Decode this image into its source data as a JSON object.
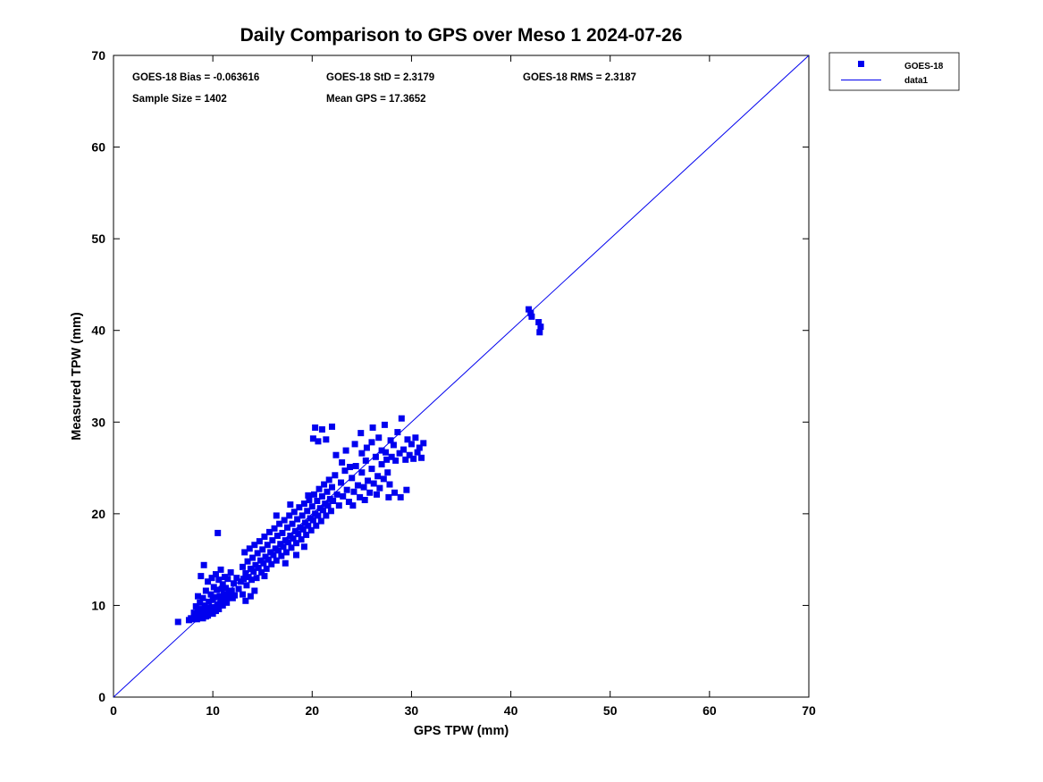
{
  "title": "Daily Comparison to GPS over Meso 1 2024-07-26",
  "annotations": {
    "bias": "GOES-18 Bias = -0.063616",
    "std": "GOES-18 StD = 2.3179",
    "rms": "GOES-18 RMS = 2.3187",
    "sample_size": "Sample Size = 1402",
    "mean_gps": "Mean GPS = 17.3652"
  },
  "legend": {
    "entries": [
      {
        "label": "GOES-18",
        "type": "marker"
      },
      {
        "label": "data1",
        "type": "line"
      }
    ]
  },
  "chart_data": {
    "type": "scatter",
    "title": "Daily Comparison to GPS over Meso 1 2024-07-26",
    "xlabel": "GPS TPW (mm)",
    "ylabel": "Measured TPW (mm)",
    "xlim": [
      0,
      70
    ],
    "ylim": [
      0,
      70
    ],
    "x_ticks": [
      0,
      10,
      20,
      30,
      40,
      50,
      60,
      70
    ],
    "y_ticks": [
      0,
      10,
      20,
      30,
      40,
      50,
      60,
      70
    ],
    "grid": false,
    "legend_position": "outside-top-right",
    "marker_color": "#0000ee",
    "line_color": "#0000ee",
    "marker_size": 7,
    "identity_line": {
      "x": [
        0,
        70
      ],
      "y": [
        0,
        70
      ],
      "name": "data1"
    },
    "stats": {
      "bias": -0.063616,
      "std": 2.3179,
      "rms": 2.3187,
      "sample_size": 1402,
      "mean_gps": 17.3652
    },
    "series": [
      {
        "name": "GOES-18",
        "points": [
          [
            6.5,
            8.2
          ],
          [
            7.6,
            8.4
          ],
          [
            7.8,
            8.6
          ],
          [
            8.0,
            8.5
          ],
          [
            8.1,
            9.2
          ],
          [
            8.2,
            8.8
          ],
          [
            8.3,
            9.9
          ],
          [
            8.4,
            8.5
          ],
          [
            8.5,
            9.4
          ],
          [
            8.5,
            11.0
          ],
          [
            8.6,
            8.7
          ],
          [
            8.7,
            10.3
          ],
          [
            8.8,
            9.0
          ],
          [
            8.8,
            13.2
          ],
          [
            8.9,
            9.6
          ],
          [
            9.0,
            8.6
          ],
          [
            9.0,
            10.8
          ],
          [
            9.1,
            9.3
          ],
          [
            9.1,
            14.4
          ],
          [
            9.2,
            10.0
          ],
          [
            9.3,
            8.8
          ],
          [
            9.3,
            11.6
          ],
          [
            9.4,
            9.7
          ],
          [
            9.5,
            8.9
          ],
          [
            9.5,
            12.6
          ],
          [
            9.6,
            10.4
          ],
          [
            9.7,
            9.2
          ],
          [
            9.8,
            11.2
          ],
          [
            9.9,
            9.8
          ],
          [
            9.9,
            13.0
          ],
          [
            10.0,
            9.1
          ],
          [
            10.0,
            10.6
          ],
          [
            10.1,
            9.8
          ],
          [
            10.1,
            12.0
          ],
          [
            10.2,
            10.9
          ],
          [
            10.3,
            9.4
          ],
          [
            10.3,
            13.4
          ],
          [
            10.4,
            11.7
          ],
          [
            10.5,
            10.1
          ],
          [
            10.5,
            17.9
          ],
          [
            10.6,
            9.6
          ],
          [
            10.6,
            12.8
          ],
          [
            10.7,
            11.0
          ],
          [
            10.8,
            10.4
          ],
          [
            10.8,
            13.9
          ],
          [
            10.9,
            11.8
          ],
          [
            11.0,
            10.0
          ],
          [
            11.0,
            12.3
          ],
          [
            11.1,
            11.2
          ],
          [
            11.2,
            10.7
          ],
          [
            11.2,
            13.1
          ],
          [
            11.3,
            11.9
          ],
          [
            11.4,
            10.3
          ],
          [
            11.5,
            12.9
          ],
          [
            11.6,
            11.3
          ],
          [
            11.7,
            10.9
          ],
          [
            11.8,
            13.6
          ],
          [
            11.9,
            11.6
          ],
          [
            12.0,
            10.8
          ],
          [
            12.1,
            12.4
          ],
          [
            12.2,
            11.1
          ],
          [
            12.4,
            13.0
          ],
          [
            12.6,
            11.8
          ],
          [
            12.8,
            12.6
          ],
          [
            13.0,
            11.2
          ],
          [
            13.0,
            14.2
          ],
          [
            13.1,
            12.9
          ],
          [
            13.2,
            15.8
          ],
          [
            13.3,
            13.5
          ],
          [
            13.4,
            12.2
          ],
          [
            13.5,
            14.8
          ],
          [
            13.6,
            13.1
          ],
          [
            13.7,
            16.2
          ],
          [
            13.8,
            14.0
          ],
          [
            13.9,
            12.8
          ],
          [
            14.0,
            15.2
          ],
          [
            14.1,
            13.7
          ],
          [
            14.2,
            16.6
          ],
          [
            14.3,
            14.4
          ],
          [
            14.4,
            13.0
          ],
          [
            14.5,
            15.7
          ],
          [
            14.6,
            14.1
          ],
          [
            14.7,
            17.0
          ],
          [
            14.8,
            14.9
          ],
          [
            14.9,
            13.6
          ],
          [
            15.0,
            16.1
          ],
          [
            15.1,
            14.6
          ],
          [
            15.2,
            17.5
          ],
          [
            15.3,
            15.3
          ],
          [
            15.4,
            14.0
          ],
          [
            15.5,
            16.6
          ],
          [
            15.6,
            15.0
          ],
          [
            15.7,
            18.0
          ],
          [
            15.8,
            15.8
          ],
          [
            15.9,
            14.5
          ],
          [
            16.0,
            17.1
          ],
          [
            16.1,
            15.5
          ],
          [
            16.2,
            18.4
          ],
          [
            16.3,
            16.2
          ],
          [
            16.4,
            14.9
          ],
          [
            16.5,
            17.6
          ],
          [
            16.6,
            16.0
          ],
          [
            16.7,
            18.9
          ],
          [
            16.8,
            16.7
          ],
          [
            16.9,
            15.4
          ],
          [
            13.3,
            10.5
          ],
          [
            13.8,
            11.0
          ],
          [
            14.2,
            11.6
          ],
          [
            15.2,
            13.2
          ],
          [
            16.4,
            19.8
          ],
          [
            17.0,
            17.9
          ],
          [
            17.1,
            16.4
          ],
          [
            17.2,
            19.3
          ],
          [
            17.3,
            17.1
          ],
          [
            17.4,
            15.8
          ],
          [
            17.5,
            18.5
          ],
          [
            17.6,
            16.9
          ],
          [
            17.7,
            19.8
          ],
          [
            17.8,
            17.6
          ],
          [
            17.9,
            16.3
          ],
          [
            18.0,
            18.9
          ],
          [
            18.1,
            17.3
          ],
          [
            18.2,
            20.2
          ],
          [
            18.3,
            18.1
          ],
          [
            18.4,
            16.8
          ],
          [
            18.5,
            19.4
          ],
          [
            18.6,
            17.8
          ],
          [
            18.7,
            20.7
          ],
          [
            18.8,
            18.5
          ],
          [
            18.9,
            17.2
          ],
          [
            19.0,
            19.8
          ],
          [
            19.1,
            18.3
          ],
          [
            19.2,
            21.1
          ],
          [
            19.3,
            19.0
          ],
          [
            19.4,
            17.7
          ],
          [
            19.5,
            20.3
          ],
          [
            19.6,
            18.7
          ],
          [
            19.7,
            21.5
          ],
          [
            19.8,
            19.5
          ],
          [
            19.9,
            18.2
          ],
          [
            17.3,
            14.6
          ],
          [
            18.4,
            15.5
          ],
          [
            19.2,
            16.4
          ],
          [
            17.8,
            21.0
          ],
          [
            19.6,
            22.0
          ],
          [
            20.0,
            20.8
          ],
          [
            20.1,
            19.3
          ],
          [
            20.2,
            22.1
          ],
          [
            20.3,
            20.0
          ],
          [
            20.4,
            18.7
          ],
          [
            20.5,
            21.4
          ],
          [
            20.6,
            19.8
          ],
          [
            20.7,
            22.7
          ],
          [
            20.8,
            20.6
          ],
          [
            20.9,
            19.2
          ],
          [
            21.0,
            21.9
          ],
          [
            21.1,
            20.4
          ],
          [
            21.2,
            23.2
          ],
          [
            21.3,
            21.1
          ],
          [
            21.4,
            19.8
          ],
          [
            21.5,
            22.4
          ],
          [
            21.6,
            20.9
          ],
          [
            21.7,
            23.7
          ],
          [
            21.8,
            21.6
          ],
          [
            21.9,
            20.3
          ],
          [
            22.0,
            22.9
          ],
          [
            22.1,
            21.4
          ],
          [
            22.3,
            24.2
          ],
          [
            22.5,
            22.1
          ],
          [
            22.7,
            20.9
          ],
          [
            22.9,
            23.4
          ],
          [
            23.1,
            21.9
          ],
          [
            23.3,
            24.7
          ],
          [
            23.5,
            22.6
          ],
          [
            23.7,
            21.3
          ],
          [
            20.1,
            28.2
          ],
          [
            20.3,
            29.4
          ],
          [
            20.6,
            27.9
          ],
          [
            21.0,
            29.2
          ],
          [
            21.4,
            28.1
          ],
          [
            22.0,
            29.5
          ],
          [
            22.4,
            26.4
          ],
          [
            23.0,
            25.6
          ],
          [
            23.4,
            26.9
          ],
          [
            23.8,
            25.1
          ],
          [
            24.0,
            23.9
          ],
          [
            24.2,
            22.4
          ],
          [
            24.4,
            25.2
          ],
          [
            24.6,
            23.1
          ],
          [
            24.8,
            21.8
          ],
          [
            25.0,
            24.5
          ],
          [
            25.2,
            22.9
          ],
          [
            25.4,
            25.8
          ],
          [
            25.6,
            23.6
          ],
          [
            25.8,
            22.3
          ],
          [
            26.0,
            24.9
          ],
          [
            26.2,
            23.3
          ],
          [
            26.4,
            26.2
          ],
          [
            26.6,
            24.1
          ],
          [
            26.8,
            22.8
          ],
          [
            27.0,
            25.4
          ],
          [
            27.2,
            23.8
          ],
          [
            27.4,
            26.7
          ],
          [
            27.6,
            24.5
          ],
          [
            27.8,
            23.2
          ],
          [
            24.3,
            27.6
          ],
          [
            24.9,
            28.8
          ],
          [
            25.5,
            27.2
          ],
          [
            26.1,
            29.4
          ],
          [
            26.7,
            28.3
          ],
          [
            27.3,
            29.7
          ],
          [
            27.9,
            28.0
          ],
          [
            24.1,
            20.9
          ],
          [
            25.3,
            21.5
          ],
          [
            26.5,
            22.1
          ],
          [
            27.7,
            21.8
          ],
          [
            25.0,
            26.6
          ],
          [
            26.0,
            27.8
          ],
          [
            27.0,
            26.9
          ],
          [
            27.5,
            25.9
          ],
          [
            28.0,
            26.2
          ],
          [
            28.2,
            27.5
          ],
          [
            28.4,
            25.8
          ],
          [
            28.6,
            28.9
          ],
          [
            28.8,
            26.6
          ],
          [
            29.0,
            30.4
          ],
          [
            29.2,
            27.0
          ],
          [
            29.4,
            25.9
          ],
          [
            29.6,
            28.1
          ],
          [
            29.8,
            26.4
          ],
          [
            30.0,
            27.6
          ],
          [
            30.2,
            26.0
          ],
          [
            30.4,
            28.3
          ],
          [
            30.6,
            26.7
          ],
          [
            30.8,
            27.2
          ],
          [
            31.0,
            26.1
          ],
          [
            31.2,
            27.7
          ],
          [
            28.3,
            22.3
          ],
          [
            28.9,
            21.8
          ],
          [
            29.5,
            22.6
          ],
          [
            41.8,
            42.3
          ],
          [
            42.0,
            41.9
          ],
          [
            42.1,
            41.5
          ],
          [
            42.8,
            40.9
          ],
          [
            43.0,
            40.4
          ],
          [
            42.9,
            39.8
          ]
        ]
      }
    ]
  }
}
